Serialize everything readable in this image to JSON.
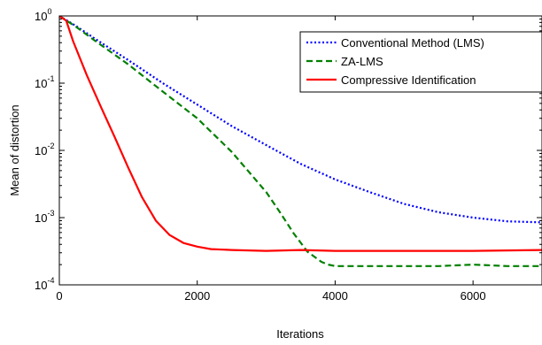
{
  "chart_data": {
    "type": "line",
    "title": "",
    "xlabel": "Iterations",
    "ylabel": "Mean of distortion",
    "x_range": [
      0,
      7000
    ],
    "y_range": [
      0.0001,
      1
    ],
    "y_scale": "log",
    "x_ticks": [
      0,
      2000,
      4000,
      6000
    ],
    "x_tick_labels": [
      "0",
      "2000",
      "4000",
      "6000"
    ],
    "y_ticks": [
      {
        "value": 1,
        "base": "10",
        "exp": "0"
      },
      {
        "value": 0.1,
        "base": "10",
        "exp": "-1"
      },
      {
        "value": 0.01,
        "base": "10",
        "exp": "-2"
      },
      {
        "value": 0.001,
        "base": "10",
        "exp": "-3"
      },
      {
        "value": 0.0001,
        "base": "10",
        "exp": "-4"
      }
    ],
    "grid": false,
    "legend_position": "top-right",
    "series": [
      {
        "name": "Conventional Method (LMS)",
        "color": "#0000ff",
        "dash": "dotted",
        "x": [
          0,
          250,
          500,
          1000,
          1500,
          2000,
          2500,
          3000,
          3500,
          4000,
          4500,
          5000,
          5500,
          6000,
          6500,
          7000
        ],
        "y": [
          1.0,
          0.7,
          0.47,
          0.22,
          0.1,
          0.048,
          0.023,
          0.012,
          0.0063,
          0.0037,
          0.0024,
          0.0016,
          0.0012,
          0.001,
          0.00088,
          0.00085
        ]
      },
      {
        "name": "ZA-LMS",
        "color": "#008000",
        "dash": "dashed",
        "x": [
          0,
          250,
          500,
          1000,
          1500,
          2000,
          2500,
          3000,
          3200,
          3400,
          3600,
          3800,
          3900,
          4000,
          4500,
          5000,
          5500,
          6000,
          6500,
          7000
        ],
        "y": [
          1.0,
          0.68,
          0.44,
          0.19,
          0.075,
          0.03,
          0.0095,
          0.0024,
          0.0012,
          0.00058,
          0.00031,
          0.00022,
          0.0002,
          0.00019,
          0.00019,
          0.00019,
          0.00019,
          0.0002,
          0.00019,
          0.00019
        ]
      },
      {
        "name": "Compressive Identification",
        "color": "#ff0000",
        "dash": "solid",
        "x": [
          0,
          100,
          200,
          400,
          600,
          800,
          1000,
          1200,
          1400,
          1600,
          1800,
          2000,
          2200,
          2500,
          3000,
          3500,
          4000,
          5000,
          6000,
          7000
        ],
        "y": [
          1.0,
          0.85,
          0.42,
          0.13,
          0.045,
          0.016,
          0.0055,
          0.002,
          0.0009,
          0.00055,
          0.00042,
          0.00037,
          0.00034,
          0.00033,
          0.00032,
          0.00033,
          0.00032,
          0.00032,
          0.00032,
          0.00033
        ]
      }
    ]
  }
}
